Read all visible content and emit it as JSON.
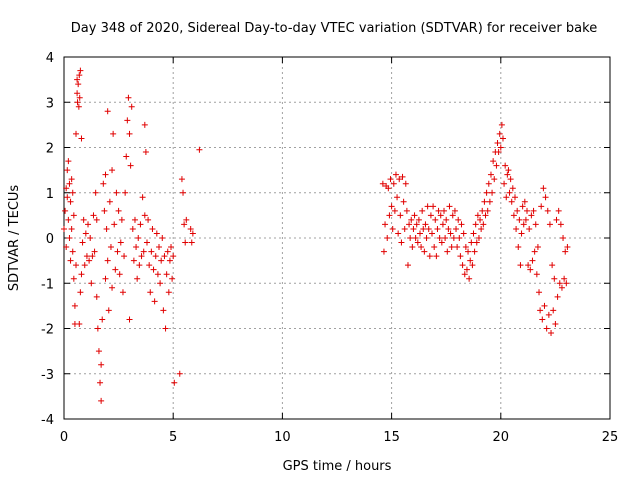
{
  "chart_data": {
    "type": "scatter",
    "title": "Day 348 of 2020, Sidereal Day-to-day VTEC variation (SDTVAR) for receiver bake",
    "xlabel": "GPS time / hours",
    "ylabel": "SDTVAR / TECUs",
    "xlim": [
      0,
      25
    ],
    "ylim": [
      -4,
      4
    ],
    "xticks": [
      0,
      5,
      10,
      15,
      20,
      25
    ],
    "yticks": [
      -4,
      -3,
      -2,
      -1,
      0,
      1,
      2,
      3,
      4
    ],
    "grid": true,
    "marker": "+",
    "color": "#e00000",
    "series": [
      {
        "name": "SDTVAR",
        "points": [
          [
            0.0,
            0.2
          ],
          [
            0.05,
            0.6
          ],
          [
            0.1,
            1.1
          ],
          [
            0.1,
            -0.2
          ],
          [
            0.15,
            0.9
          ],
          [
            0.15,
            1.5
          ],
          [
            0.2,
            0.4
          ],
          [
            0.2,
            1.7
          ],
          [
            0.25,
            1.2
          ],
          [
            0.25,
            0.0
          ],
          [
            0.3,
            0.8
          ],
          [
            0.3,
            -0.5
          ],
          [
            0.35,
            1.3
          ],
          [
            0.35,
            0.2
          ],
          [
            0.4,
            -0.3
          ],
          [
            0.4,
            1.0
          ],
          [
            0.45,
            -0.9
          ],
          [
            0.45,
            0.5
          ],
          [
            0.5,
            -1.5
          ],
          [
            0.5,
            -1.9
          ],
          [
            0.55,
            -0.6
          ],
          [
            0.55,
            2.3
          ],
          [
            0.6,
            3.2
          ],
          [
            0.6,
            3.5
          ],
          [
            0.62,
            3.0
          ],
          [
            0.65,
            3.4
          ],
          [
            0.68,
            2.9
          ],
          [
            0.7,
            3.6
          ],
          [
            0.72,
            3.1
          ],
          [
            0.75,
            3.7
          ],
          [
            0.7,
            -1.9
          ],
          [
            0.75,
            -1.2
          ],
          [
            0.8,
            -0.8
          ],
          [
            0.8,
            2.2
          ],
          [
            0.85,
            -0.1
          ],
          [
            0.9,
            0.4
          ],
          [
            0.95,
            -0.6
          ],
          [
            1.0,
            0.1
          ],
          [
            1.05,
            -0.4
          ],
          [
            1.1,
            0.3
          ],
          [
            1.15,
            -0.5
          ],
          [
            1.2,
            0.0
          ],
          [
            1.25,
            -1.0
          ],
          [
            1.3,
            -0.4
          ],
          [
            1.35,
            0.5
          ],
          [
            1.4,
            -0.3
          ],
          [
            1.45,
            1.0
          ],
          [
            1.5,
            0.4
          ],
          [
            1.5,
            -1.3
          ],
          [
            1.55,
            -2.0
          ],
          [
            1.6,
            -2.5
          ],
          [
            1.65,
            -3.2
          ],
          [
            1.7,
            -3.6
          ],
          [
            1.7,
            -2.8
          ],
          [
            1.75,
            -1.8
          ],
          [
            1.8,
            1.2
          ],
          [
            1.85,
            0.6
          ],
          [
            1.9,
            1.4
          ],
          [
            1.9,
            -0.9
          ],
          [
            1.95,
            0.2
          ],
          [
            2.0,
            -0.5
          ],
          [
            2.0,
            2.8
          ],
          [
            2.05,
            -1.6
          ],
          [
            2.1,
            0.8
          ],
          [
            2.15,
            -0.2
          ],
          [
            2.2,
            1.5
          ],
          [
            2.2,
            -1.1
          ],
          [
            2.25,
            2.3
          ],
          [
            2.3,
            0.3
          ],
          [
            2.35,
            -0.7
          ],
          [
            2.4,
            1.0
          ],
          [
            2.45,
            -0.3
          ],
          [
            2.5,
            0.6
          ],
          [
            2.55,
            -0.8
          ],
          [
            2.6,
            -0.1
          ],
          [
            2.65,
            0.4
          ],
          [
            2.7,
            -1.2
          ],
          [
            2.75,
            -0.4
          ],
          [
            2.8,
            1.0
          ],
          [
            2.85,
            1.8
          ],
          [
            2.9,
            2.6
          ],
          [
            2.95,
            3.1
          ],
          [
            3.0,
            2.3
          ],
          [
            3.0,
            -1.8
          ],
          [
            3.05,
            1.6
          ],
          [
            3.1,
            2.9
          ],
          [
            3.15,
            0.2
          ],
          [
            3.2,
            -0.5
          ],
          [
            3.25,
            0.4
          ],
          [
            3.3,
            -0.2
          ],
          [
            3.35,
            -0.9
          ],
          [
            3.4,
            0.0
          ],
          [
            3.45,
            -0.6
          ],
          [
            3.5,
            0.3
          ],
          [
            3.55,
            -0.4
          ],
          [
            3.6,
            0.9
          ],
          [
            3.65,
            -0.3
          ],
          [
            3.7,
            2.5
          ],
          [
            3.7,
            0.5
          ],
          [
            3.75,
            1.9
          ],
          [
            3.8,
            -0.1
          ],
          [
            3.85,
            0.4
          ],
          [
            3.9,
            -0.6
          ],
          [
            3.95,
            -1.2
          ],
          [
            4.0,
            -0.3
          ],
          [
            4.05,
            0.2
          ],
          [
            4.1,
            -0.7
          ],
          [
            4.15,
            -1.4
          ],
          [
            4.2,
            -0.4
          ],
          [
            4.25,
            0.1
          ],
          [
            4.3,
            -0.8
          ],
          [
            4.35,
            -0.2
          ],
          [
            4.4,
            -1.0
          ],
          [
            4.45,
            -0.5
          ],
          [
            4.5,
            0.0
          ],
          [
            4.55,
            -1.6
          ],
          [
            4.6,
            -0.4
          ],
          [
            4.65,
            -2.0
          ],
          [
            4.7,
            -0.8
          ],
          [
            4.75,
            -0.3
          ],
          [
            4.8,
            -1.2
          ],
          [
            4.85,
            -0.5
          ],
          [
            4.9,
            -0.2
          ],
          [
            4.95,
            -0.9
          ],
          [
            5.0,
            -0.4
          ],
          [
            5.05,
            -3.2
          ],
          [
            5.3,
            -3.0
          ],
          [
            5.4,
            1.3
          ],
          [
            5.45,
            1.0
          ],
          [
            5.5,
            0.3
          ],
          [
            5.55,
            -0.1
          ],
          [
            5.6,
            0.4
          ],
          [
            5.8,
            0.2
          ],
          [
            5.85,
            -0.1
          ],
          [
            5.9,
            0.1
          ],
          [
            6.2,
            1.95
          ],
          [
            14.6,
            1.2
          ],
          [
            14.65,
            -0.3
          ],
          [
            14.7,
            0.3
          ],
          [
            14.75,
            1.15
          ],
          [
            14.8,
            0.0
          ],
          [
            14.85,
            1.1
          ],
          [
            14.9,
            0.5
          ],
          [
            14.95,
            1.3
          ],
          [
            15.0,
            0.7
          ],
          [
            15.05,
            0.2
          ],
          [
            15.1,
            1.2
          ],
          [
            15.15,
            0.6
          ],
          [
            15.2,
            1.4
          ],
          [
            15.25,
            0.9
          ],
          [
            15.3,
            0.1
          ],
          [
            15.35,
            1.3
          ],
          [
            15.4,
            0.5
          ],
          [
            15.45,
            -0.1
          ],
          [
            15.5,
            1.35
          ],
          [
            15.55,
            0.8
          ],
          [
            15.6,
            0.2
          ],
          [
            15.65,
            1.2
          ],
          [
            15.7,
            0.6
          ],
          [
            15.75,
            -0.6
          ],
          [
            15.8,
            0.3
          ],
          [
            15.85,
            0.0
          ],
          [
            15.9,
            0.4
          ],
          [
            15.95,
            -0.2
          ],
          [
            16.0,
            0.2
          ],
          [
            16.05,
            0.5
          ],
          [
            16.1,
            0.0
          ],
          [
            16.15,
            0.3
          ],
          [
            16.2,
            -0.1
          ],
          [
            16.25,
            0.4
          ],
          [
            16.3,
            0.1
          ],
          [
            16.35,
            -0.2
          ],
          [
            16.4,
            0.6
          ],
          [
            16.45,
            0.2
          ],
          [
            16.5,
            -0.3
          ],
          [
            16.55,
            0.3
          ],
          [
            16.6,
            0.0
          ],
          [
            16.65,
            0.7
          ],
          [
            16.7,
            0.2
          ],
          [
            16.75,
            -0.4
          ],
          [
            16.8,
            0.5
          ],
          [
            16.85,
            0.1
          ],
          [
            16.9,
            0.7
          ],
          [
            16.95,
            -0.2
          ],
          [
            17.0,
            0.4
          ],
          [
            17.05,
            -0.4
          ],
          [
            17.1,
            0.2
          ],
          [
            17.15,
            0.6
          ],
          [
            17.2,
            0.0
          ],
          [
            17.25,
            0.5
          ],
          [
            17.3,
            -0.1
          ],
          [
            17.35,
            0.3
          ],
          [
            17.4,
            0.6
          ],
          [
            17.45,
            0.0
          ],
          [
            17.5,
            0.4
          ],
          [
            17.55,
            -0.3
          ],
          [
            17.6,
            0.2
          ],
          [
            17.65,
            0.7
          ],
          [
            17.7,
            0.1
          ],
          [
            17.75,
            -0.2
          ],
          [
            17.8,
            0.5
          ],
          [
            17.85,
            0.0
          ],
          [
            17.9,
            0.6
          ],
          [
            17.95,
            0.2
          ],
          [
            18.0,
            -0.2
          ],
          [
            18.05,
            0.4
          ],
          [
            18.1,
            0.0
          ],
          [
            18.15,
            -0.4
          ],
          [
            18.2,
            0.3
          ],
          [
            18.25,
            -0.6
          ],
          [
            18.3,
            0.1
          ],
          [
            18.35,
            -0.8
          ],
          [
            18.4,
            -0.2
          ],
          [
            18.45,
            -0.7
          ],
          [
            18.5,
            -0.3
          ],
          [
            18.55,
            -0.9
          ],
          [
            18.6,
            -0.5
          ],
          [
            18.65,
            -0.1
          ],
          [
            18.7,
            -0.6
          ],
          [
            18.75,
            0.1
          ],
          [
            18.8,
            -0.3
          ],
          [
            18.85,
            0.3
          ],
          [
            18.9,
            -0.1
          ],
          [
            18.95,
            0.5
          ],
          [
            19.0,
            0.0
          ],
          [
            19.05,
            0.4
          ],
          [
            19.1,
            0.2
          ],
          [
            19.15,
            0.6
          ],
          [
            19.2,
            0.3
          ],
          [
            19.25,
            0.8
          ],
          [
            19.3,
            0.5
          ],
          [
            19.35,
            1.0
          ],
          [
            19.4,
            0.6
          ],
          [
            19.45,
            1.2
          ],
          [
            19.5,
            0.8
          ],
          [
            19.55,
            1.4
          ],
          [
            19.6,
            1.0
          ],
          [
            19.65,
            1.7
          ],
          [
            19.7,
            1.3
          ],
          [
            19.75,
            1.9
          ],
          [
            19.8,
            1.6
          ],
          [
            19.85,
            2.1
          ],
          [
            19.9,
            1.9
          ],
          [
            19.95,
            2.3
          ],
          [
            20.0,
            2.0
          ],
          [
            20.05,
            2.5
          ],
          [
            20.1,
            2.2
          ],
          [
            20.15,
            1.2
          ],
          [
            20.2,
            1.6
          ],
          [
            20.25,
            0.9
          ],
          [
            20.3,
            1.4
          ],
          [
            20.35,
            1.5
          ],
          [
            20.4,
            1.0
          ],
          [
            20.45,
            1.3
          ],
          [
            20.5,
            0.8
          ],
          [
            20.55,
            1.1
          ],
          [
            20.6,
            0.5
          ],
          [
            20.65,
            0.9
          ],
          [
            20.7,
            0.2
          ],
          [
            20.75,
            0.6
          ],
          [
            20.8,
            -0.2
          ],
          [
            20.85,
            0.4
          ],
          [
            20.9,
            -0.6
          ],
          [
            20.95,
            0.1
          ],
          [
            21.0,
            0.7
          ],
          [
            21.05,
            0.3
          ],
          [
            21.1,
            0.8
          ],
          [
            21.15,
            0.4
          ],
          [
            21.2,
            0.6
          ],
          [
            21.25,
            -0.6
          ],
          [
            21.3,
            0.2
          ],
          [
            21.35,
            -0.7
          ],
          [
            21.4,
            0.5
          ],
          [
            21.45,
            -0.5
          ],
          [
            21.5,
            0.6
          ],
          [
            21.55,
            -0.3
          ],
          [
            21.6,
            0.3
          ],
          [
            21.65,
            -0.8
          ],
          [
            21.7,
            -0.2
          ],
          [
            21.75,
            -1.2
          ],
          [
            21.8,
            -1.6
          ],
          [
            21.85,
            0.7
          ],
          [
            21.9,
            -1.8
          ],
          [
            21.95,
            1.1
          ],
          [
            22.0,
            -1.5
          ],
          [
            22.05,
            0.9
          ],
          [
            22.1,
            -2.0
          ],
          [
            22.15,
            0.6
          ],
          [
            22.2,
            -1.7
          ],
          [
            22.25,
            0.3
          ],
          [
            22.3,
            -2.1
          ],
          [
            22.35,
            -0.6
          ],
          [
            22.4,
            -1.6
          ],
          [
            22.45,
            -0.9
          ],
          [
            22.5,
            -1.9
          ],
          [
            22.55,
            0.4
          ],
          [
            22.6,
            -1.3
          ],
          [
            22.65,
            0.6
          ],
          [
            22.7,
            -1.0
          ],
          [
            22.75,
            0.3
          ],
          [
            22.8,
            -1.1
          ],
          [
            22.85,
            0.0
          ],
          [
            22.9,
            -0.9
          ],
          [
            22.95,
            -0.3
          ],
          [
            23.0,
            -1.0
          ],
          [
            23.05,
            -0.2
          ]
        ]
      }
    ]
  }
}
